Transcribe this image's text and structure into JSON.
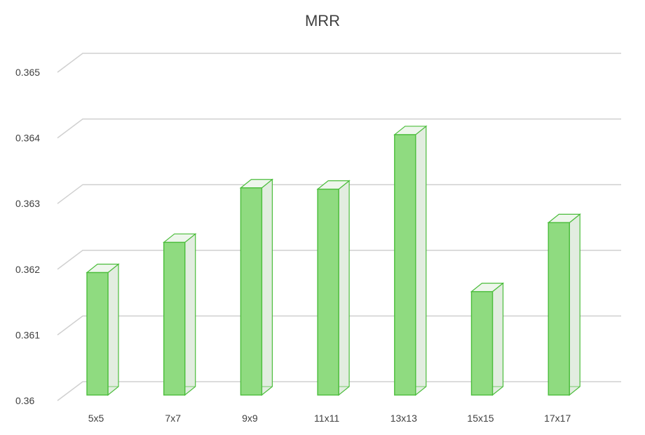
{
  "chart_data": {
    "type": "bar",
    "title": "MRR",
    "categories": [
      "5x5",
      "7x7",
      "9x9",
      "11x11",
      "13x13",
      "15x15",
      "17x17"
    ],
    "values": [
      0.36195,
      0.36241,
      0.36324,
      0.36322,
      0.36405,
      0.36166,
      0.36271
    ],
    "y_ticks": [
      "0.36",
      "0.361",
      "0.362",
      "0.363",
      "0.364",
      "0.365"
    ],
    "ylim": [
      0.36,
      0.365
    ],
    "xlabel": "",
    "ylabel": "",
    "grid": true,
    "legend": "none",
    "style": "3d-column",
    "colors": {
      "bar_front": "#8fdb80",
      "bar_side": "#e2ede0",
      "bar_top": "#eef6ec",
      "bar_edge": "#4bbd3b",
      "grid": "#d0d0d0",
      "text": "#404040"
    }
  }
}
